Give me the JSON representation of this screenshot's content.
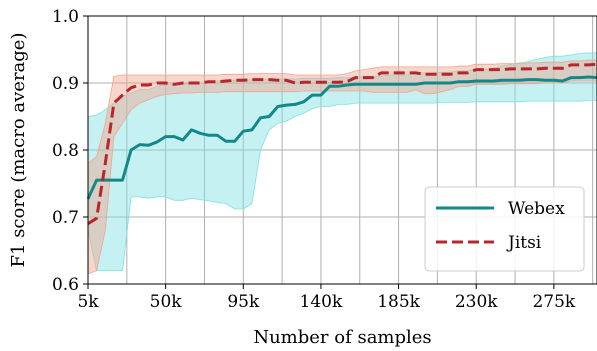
{
  "chart_data": {
    "type": "line",
    "title": "",
    "xlabel": "Number of samples",
    "ylabel": "F1 score (macro average)",
    "xlim": [
      5000,
      300000
    ],
    "ylim": [
      0.6,
      1.0
    ],
    "grid": true,
    "legend_position": "lower-right",
    "x_ticks": [
      5000,
      50000,
      95000,
      140000,
      185000,
      230000,
      275000
    ],
    "x_tick_labels": [
      "5k",
      "50k",
      "95k",
      "140k",
      "185k",
      "230k",
      "275k"
    ],
    "y_ticks": [
      0.6,
      0.7,
      0.8,
      0.9,
      1.0
    ],
    "y_tick_labels": [
      "0.6",
      "0.7",
      "0.8",
      "0.9",
      "1.0"
    ],
    "x": [
      5000,
      10000,
      15000,
      20000,
      25000,
      30000,
      35000,
      40000,
      45000,
      50000,
      55000,
      60000,
      65000,
      70000,
      75000,
      80000,
      85000,
      90000,
      95000,
      100000,
      105000,
      110000,
      115000,
      120000,
      125000,
      130000,
      135000,
      140000,
      145000,
      150000,
      155000,
      160000,
      165000,
      170000,
      175000,
      180000,
      185000,
      190000,
      195000,
      200000,
      205000,
      210000,
      215000,
      220000,
      225000,
      230000,
      235000,
      240000,
      245000,
      250000,
      255000,
      260000,
      265000,
      270000,
      275000,
      280000,
      285000,
      290000,
      295000,
      300000
    ],
    "series": [
      {
        "name": "Webex",
        "color": "#13888a",
        "fill_color": "#7fe1e3",
        "line_style": "solid",
        "values": [
          0.727,
          0.755,
          0.755,
          0.755,
          0.755,
          0.8,
          0.808,
          0.807,
          0.812,
          0.82,
          0.82,
          0.815,
          0.83,
          0.825,
          0.822,
          0.822,
          0.813,
          0.813,
          0.828,
          0.83,
          0.848,
          0.85,
          0.865,
          0.867,
          0.868,
          0.872,
          0.882,
          0.882,
          0.895,
          0.895,
          0.897,
          0.898,
          0.898,
          0.898,
          0.898,
          0.898,
          0.898,
          0.898,
          0.898,
          0.9,
          0.9,
          0.9,
          0.9,
          0.902,
          0.902,
          0.903,
          0.903,
          0.903,
          0.904,
          0.904,
          0.904,
          0.905,
          0.905,
          0.904,
          0.904,
          0.903,
          0.908,
          0.908,
          0.909,
          0.908
        ],
        "upper": [
          0.85,
          0.852,
          0.86,
          0.87,
          0.88,
          0.885,
          0.89,
          0.89,
          0.895,
          0.897,
          0.898,
          0.898,
          0.9,
          0.9,
          0.902,
          0.903,
          0.903,
          0.904,
          0.904,
          0.905,
          0.905,
          0.905,
          0.906,
          0.906,
          0.906,
          0.907,
          0.907,
          0.907,
          0.907,
          0.908,
          0.908,
          0.908,
          0.91,
          0.91,
          0.91,
          0.912,
          0.912,
          0.912,
          0.915,
          0.915,
          0.915,
          0.916,
          0.916,
          0.918,
          0.918,
          0.92,
          0.92,
          0.922,
          0.925,
          0.928,
          0.93,
          0.932,
          0.935,
          0.938,
          0.94,
          0.94,
          0.942,
          0.944,
          0.945,
          0.945
        ],
        "lower": [
          0.68,
          0.62,
          0.62,
          0.62,
          0.62,
          0.73,
          0.73,
          0.728,
          0.73,
          0.73,
          0.725,
          0.725,
          0.728,
          0.726,
          0.724,
          0.722,
          0.72,
          0.712,
          0.712,
          0.72,
          0.8,
          0.83,
          0.84,
          0.843,
          0.85,
          0.855,
          0.862,
          0.865,
          0.865,
          0.868,
          0.868,
          0.87,
          0.87,
          0.87,
          0.87,
          0.87,
          0.87,
          0.87,
          0.87,
          0.87,
          0.87,
          0.871,
          0.871,
          0.871,
          0.871,
          0.872,
          0.872,
          0.872,
          0.872,
          0.872,
          0.872,
          0.873,
          0.873,
          0.873,
          0.873,
          0.873,
          0.873,
          0.873,
          0.874,
          0.874
        ]
      },
      {
        "name": "Jitsi",
        "color": "#b8262c",
        "fill_color": "#f2a48c",
        "line_style": "dashed",
        "values": [
          0.69,
          0.698,
          0.78,
          0.87,
          0.882,
          0.893,
          0.897,
          0.897,
          0.9,
          0.9,
          0.898,
          0.9,
          0.9,
          0.9,
          0.902,
          0.902,
          0.903,
          0.904,
          0.904,
          0.905,
          0.905,
          0.905,
          0.904,
          0.904,
          0.9,
          0.901,
          0.901,
          0.901,
          0.901,
          0.901,
          0.902,
          0.908,
          0.908,
          0.908,
          0.915,
          0.915,
          0.915,
          0.915,
          0.915,
          0.913,
          0.913,
          0.913,
          0.913,
          0.915,
          0.915,
          0.92,
          0.92,
          0.92,
          0.92,
          0.921,
          0.921,
          0.921,
          0.921,
          0.922,
          0.922,
          0.922,
          0.927,
          0.927,
          0.927,
          0.928
        ],
        "upper": [
          0.78,
          0.79,
          0.84,
          0.91,
          0.912,
          0.912,
          0.912,
          0.912,
          0.912,
          0.912,
          0.912,
          0.912,
          0.912,
          0.912,
          0.912,
          0.912,
          0.913,
          0.913,
          0.913,
          0.914,
          0.914,
          0.914,
          0.914,
          0.914,
          0.912,
          0.912,
          0.912,
          0.912,
          0.912,
          0.912,
          0.914,
          0.918,
          0.92,
          0.922,
          0.924,
          0.924,
          0.924,
          0.924,
          0.924,
          0.924,
          0.924,
          0.924,
          0.924,
          0.925,
          0.925,
          0.928,
          0.928,
          0.928,
          0.929,
          0.929,
          0.929,
          0.93,
          0.93,
          0.931,
          0.931,
          0.931,
          0.933,
          0.933,
          0.934,
          0.934
        ],
        "lower": [
          0.615,
          0.62,
          0.68,
          0.82,
          0.84,
          0.86,
          0.87,
          0.875,
          0.88,
          0.883,
          0.884,
          0.885,
          0.885,
          0.886,
          0.886,
          0.886,
          0.887,
          0.887,
          0.887,
          0.887,
          0.887,
          0.887,
          0.887,
          0.887,
          0.887,
          0.888,
          0.888,
          0.888,
          0.888,
          0.888,
          0.888,
          0.888,
          0.888,
          0.886,
          0.886,
          0.886,
          0.886,
          0.886,
          0.89,
          0.884,
          0.884,
          0.887,
          0.89,
          0.895,
          0.895,
          0.898,
          0.898,
          0.898,
          0.898,
          0.899,
          0.899,
          0.899,
          0.899,
          0.9,
          0.9,
          0.9,
          0.903,
          0.903,
          0.903,
          0.903
        ]
      }
    ]
  }
}
